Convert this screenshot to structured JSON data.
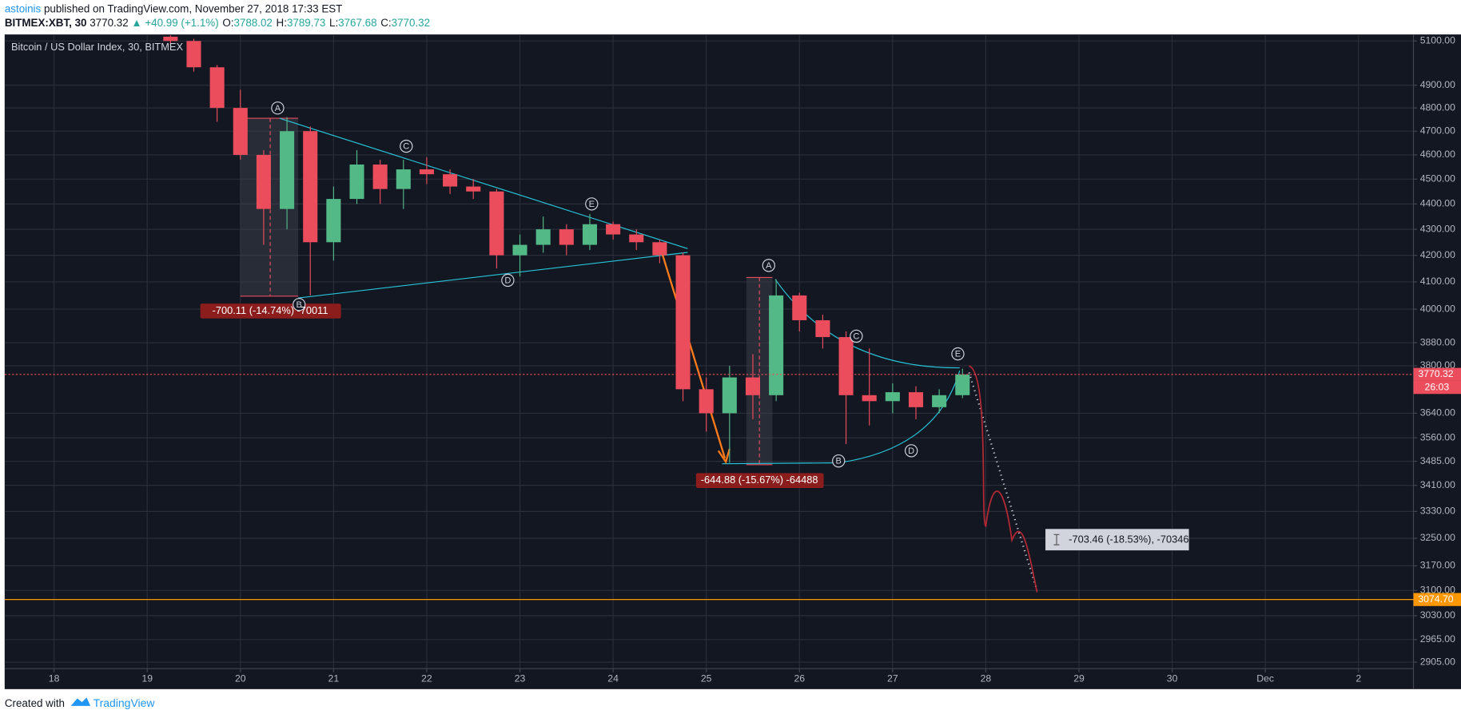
{
  "header": {
    "author": "astoinis",
    "published": "published on TradingView.com, November 27, 2018 17:33 EST",
    "symbol": "BITMEX:XBT, 30",
    "last": "3770.32",
    "change": "▲ +40.99 (+1.1%)",
    "ohlc": [
      {
        "label": "O:",
        "value": "3788.02"
      },
      {
        "label": "H:",
        "value": "3789.73"
      },
      {
        "label": "L:",
        "value": "3767.68"
      },
      {
        "label": "C:",
        "value": "3770.32"
      }
    ]
  },
  "chart_data": {
    "type": "candlestick",
    "title": "Bitcoin / US Dollar Index, 30, BITMEX",
    "x": [
      19.25,
      19.5,
      19.75,
      20,
      20.25,
      20.5,
      20.75,
      21,
      21.25,
      21.5,
      21.75,
      22,
      22.25,
      22.5,
      22.75,
      23,
      23.25,
      23.5,
      23.75,
      24,
      24.25,
      24.5,
      24.75,
      25,
      25.25,
      25.5,
      25.75,
      26,
      26.25,
      26.5,
      26.75,
      27,
      27.25,
      27.5,
      27.75
    ],
    "open": [
      5120,
      5100,
      4980,
      4800,
      4600,
      4380,
      4700,
      4250,
      4420,
      4560,
      4460,
      4540,
      4520,
      4470,
      4450,
      4200,
      4240,
      4300,
      4240,
      4320,
      4280,
      4250,
      4200,
      3720,
      3640,
      3760,
      3700,
      4050,
      3960,
      3900,
      3700,
      3680,
      3710,
      3660,
      3700
    ],
    "high": [
      5126,
      5110,
      4990,
      4880,
      4620,
      4760,
      4720,
      4470,
      4620,
      4580,
      4580,
      4590,
      4540,
      4500,
      4460,
      4280,
      4350,
      4320,
      4360,
      4330,
      4300,
      4260,
      4210,
      3760,
      3800,
      3840,
      4110,
      4060,
      3980,
      3920,
      3860,
      3740,
      3730,
      3720,
      3789.73
    ],
    "low": [
      5080,
      4960,
      4740,
      4580,
      4240,
      4300,
      4050,
      4180,
      4400,
      4400,
      4380,
      4480,
      4440,
      4420,
      4150,
      4120,
      4210,
      4200,
      4220,
      4260,
      4220,
      4170,
      3680,
      3580,
      3480,
      3620,
      3680,
      3920,
      3860,
      3540,
      3600,
      3640,
      3620,
      3640,
      3690
    ],
    "close": [
      5100,
      4980,
      4800,
      4600,
      4380,
      4700,
      4250,
      4420,
      4560,
      4460,
      4540,
      4520,
      4470,
      4450,
      4200,
      4240,
      4300,
      4240,
      4320,
      4280,
      4250,
      4200,
      3720,
      3640,
      3760,
      3700,
      4050,
      3960,
      3900,
      3700,
      3680,
      3710,
      3660,
      3700,
      3770.32
    ],
    "up_color": "#53b987",
    "down_color": "#eb4d5c",
    "xlim": [
      17.47,
      32.59
    ],
    "xticks": [
      18,
      19,
      20,
      21,
      22,
      23,
      24,
      25,
      26,
      27,
      28,
      29,
      30,
      {
        "value": 31,
        "label": "Dec"
      },
      {
        "value": 32,
        "label": "2"
      }
    ],
    "ylim": [
      2888,
      5126
    ],
    "log_scale": true,
    "grid": true,
    "yticks": [
      {
        "value": 5100,
        "label": "5100.00"
      },
      {
        "value": 4900,
        "label": "4900.00"
      },
      {
        "value": 4800,
        "label": "4800.00"
      },
      {
        "value": 4700,
        "label": "4700.00"
      },
      {
        "value": 4600,
        "label": "4600.00"
      },
      {
        "value": 4500,
        "label": "4500.00"
      },
      {
        "value": 4400,
        "label": "4400.00"
      },
      {
        "value": 4300,
        "label": "4300.00"
      },
      {
        "value": 4200,
        "label": "4200.00"
      },
      {
        "value": 4100,
        "label": "4100.00"
      },
      {
        "value": 4000,
        "label": "4000.00"
      },
      {
        "value": 3880,
        "label": "3880.00"
      },
      {
        "value": 3800,
        "label": "3800.00"
      },
      {
        "value": 3640,
        "label": "3640.00"
      },
      {
        "value": 3560,
        "label": "3560.00"
      },
      {
        "value": 3485,
        "label": "3485.00"
      },
      {
        "value": 3410,
        "label": "3410.00"
      },
      {
        "value": 3330,
        "label": "3330.00"
      },
      {
        "value": 3250,
        "label": "3250.00"
      },
      {
        "value": 3170,
        "label": "3170.00"
      },
      {
        "value": 3100,
        "label": "3100.00"
      },
      {
        "value": 3030,
        "label": "3030.00"
      },
      {
        "value": 2965,
        "label": "2965.00"
      },
      {
        "value": 2905,
        "label": "2905.00"
      }
    ],
    "price_lines": [
      {
        "value": 3770.32,
        "color": "#eb4d5c",
        "countdown": "26:03"
      },
      {
        "value": 3074.7,
        "label": "3074.70",
        "color": "#ff9800"
      }
    ],
    "pattern_labels": [
      "A",
      "B",
      "C",
      "D",
      "E",
      "A",
      "B",
      "C",
      "D",
      "E"
    ],
    "measurements": [
      "-700.11 (-14.74%) -70011",
      "-644.88 (-15.67%) -64488",
      "-703.46 (-18.53%), -70346"
    ]
  },
  "footer": {
    "created": "Created with",
    "brand": "TradingView"
  }
}
